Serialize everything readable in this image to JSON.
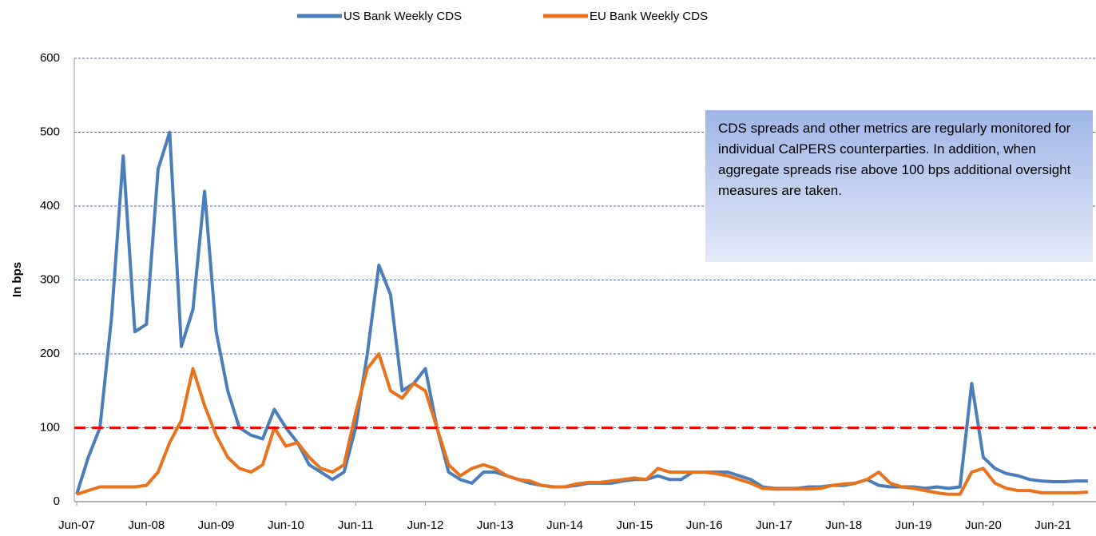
{
  "chart_data": {
    "type": "line",
    "y_label": "In bps",
    "annotation": "CDS spreads and other metrics are regularly monitored for individual CalPERS counterparties. In addition, when aggregate spreads rise above 100 bps additional oversight measures are taken.",
    "categories": [
      "Jun-07",
      null,
      null,
      null,
      null,
      null,
      "Jun-08",
      null,
      null,
      null,
      null,
      null,
      "Jun-09",
      null,
      null,
      null,
      null,
      null,
      "Jun-10",
      null,
      null,
      null,
      null,
      null,
      "Jun-11",
      null,
      null,
      null,
      null,
      null,
      "Jun-12",
      null,
      null,
      null,
      null,
      null,
      "Jun-13",
      null,
      null,
      null,
      null,
      null,
      "Jun-14",
      null,
      null,
      null,
      null,
      null,
      "Jun-15",
      null,
      null,
      null,
      null,
      null,
      "Jun-16",
      null,
      null,
      null,
      null,
      null,
      "Jun-17",
      null,
      null,
      null,
      null,
      null,
      "Jun-18",
      null,
      null,
      null,
      null,
      null,
      "Jun-19",
      null,
      null,
      null,
      null,
      null,
      "Jun-20",
      null,
      null,
      null,
      null,
      null,
      "Jun-21",
      null,
      null,
      null
    ],
    "series": [
      {
        "name": "US Bank Weekly CDS",
        "color": "#4a7ebb",
        "values": [
          10,
          60,
          100,
          250,
          468,
          230,
          240,
          450,
          500,
          210,
          260,
          420,
          230,
          150,
          100,
          90,
          85,
          125,
          100,
          80,
          50,
          40,
          30,
          40,
          100,
          200,
          320,
          280,
          150,
          160,
          180,
          100,
          40,
          30,
          25,
          40,
          40,
          35,
          30,
          25,
          22,
          20,
          20,
          22,
          25,
          25,
          25,
          28,
          30,
          30,
          35,
          30,
          30,
          40,
          40,
          40,
          40,
          35,
          30,
          20,
          18,
          18,
          18,
          20,
          20,
          22,
          22,
          25,
          30,
          22,
          20,
          20,
          20,
          18,
          20,
          18,
          20,
          160,
          60,
          45,
          38,
          35,
          30,
          28,
          27,
          27,
          28,
          28
        ]
      },
      {
        "name": "EU Bank Weekly CDS",
        "color": "#e8731c",
        "values": [
          10,
          15,
          20,
          20,
          20,
          20,
          22,
          40,
          80,
          110,
          180,
          130,
          90,
          60,
          45,
          40,
          50,
          100,
          75,
          80,
          60,
          45,
          40,
          50,
          120,
          180,
          200,
          150,
          140,
          160,
          150,
          100,
          50,
          35,
          45,
          50,
          45,
          35,
          30,
          28,
          22,
          20,
          20,
          24,
          26,
          26,
          28,
          30,
          32,
          30,
          45,
          40,
          40,
          40,
          40,
          38,
          35,
          30,
          25,
          18,
          17,
          17,
          17,
          17,
          18,
          22,
          24,
          25,
          30,
          40,
          25,
          20,
          18,
          15,
          12,
          10,
          10,
          40,
          45,
          25,
          18,
          15,
          15,
          12,
          12,
          12,
          12,
          13
        ]
      }
    ],
    "threshold": {
      "value": 100,
      "color": "#ff0000"
    },
    "ylim": [
      0,
      600
    ],
    "yticks": [
      0,
      100,
      200,
      300,
      400,
      500,
      600
    ],
    "grid": true
  }
}
